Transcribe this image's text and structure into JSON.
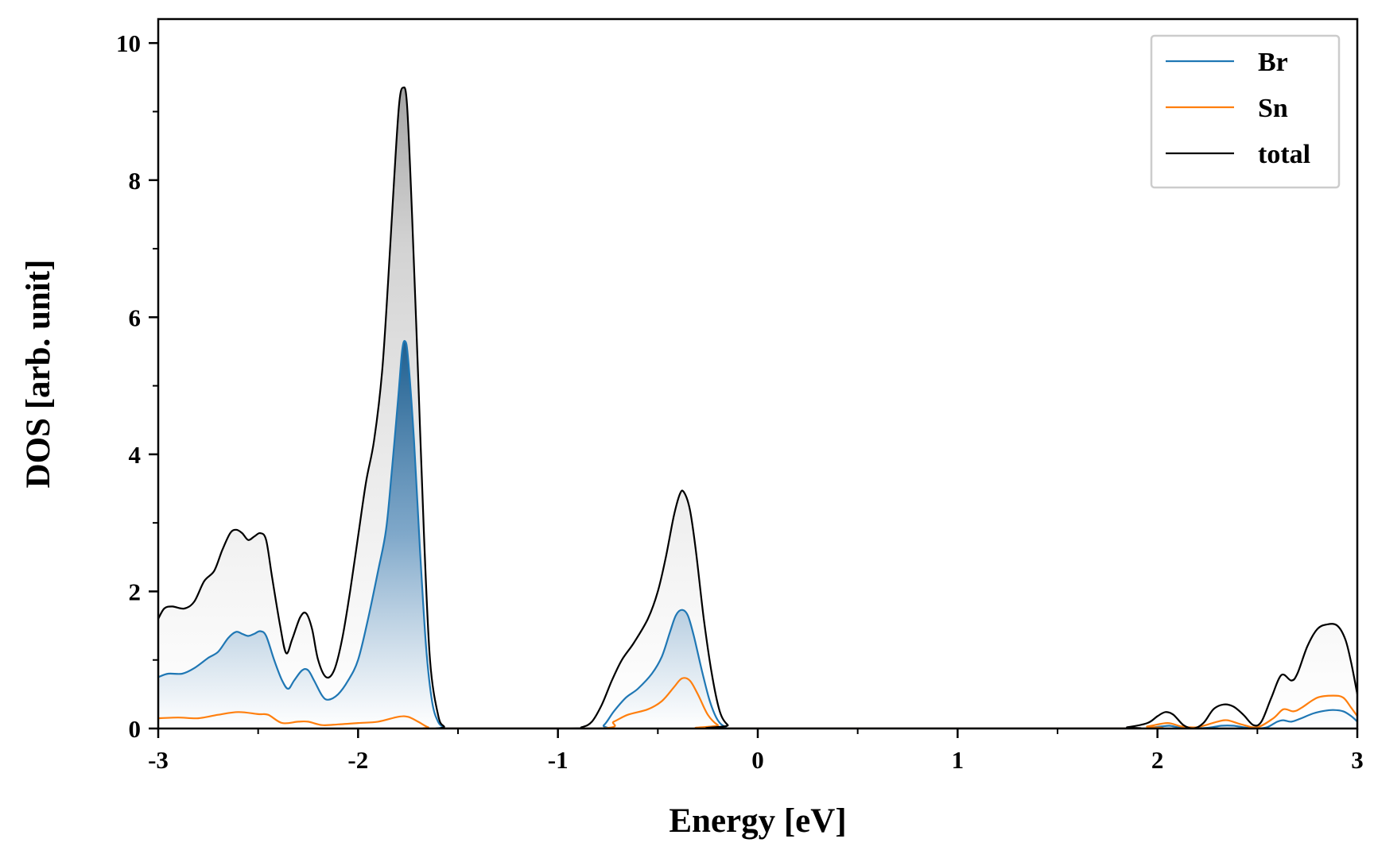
{
  "chart_data": {
    "type": "area",
    "title": "",
    "xlabel": "Energy [eV]",
    "ylabel": "DOS [arb. unit]",
    "xlim": [
      -3,
      3
    ],
    "ylim": [
      0,
      10.35
    ],
    "x_ticks": [
      -3,
      -2,
      -1,
      0,
      1,
      2,
      3
    ],
    "x_tick_labels": [
      "-3",
      "-2",
      "-1",
      "0",
      "1",
      "2",
      "3"
    ],
    "y_ticks": [
      0,
      2,
      4,
      6,
      8,
      10
    ],
    "y_tick_labels": [
      "0",
      "2",
      "4",
      "6",
      "8",
      "10"
    ],
    "grid": false,
    "legend_position": "top-right",
    "series": [
      {
        "name": "Br",
        "color": "#1f77b4",
        "fill": "gradient",
        "points": [
          [
            -3.0,
            0.75
          ],
          [
            -2.95,
            0.8
          ],
          [
            -2.88,
            0.8
          ],
          [
            -2.82,
            0.88
          ],
          [
            -2.75,
            1.03
          ],
          [
            -2.7,
            1.12
          ],
          [
            -2.65,
            1.32
          ],
          [
            -2.61,
            1.41
          ],
          [
            -2.58,
            1.38
          ],
          [
            -2.55,
            1.35
          ],
          [
            -2.52,
            1.38
          ],
          [
            -2.49,
            1.42
          ],
          [
            -2.46,
            1.35
          ],
          [
            -2.42,
            1.0
          ],
          [
            -2.38,
            0.7
          ],
          [
            -2.35,
            0.58
          ],
          [
            -2.32,
            0.7
          ],
          [
            -2.28,
            0.85
          ],
          [
            -2.25,
            0.85
          ],
          [
            -2.22,
            0.7
          ],
          [
            -2.18,
            0.48
          ],
          [
            -2.15,
            0.42
          ],
          [
            -2.1,
            0.5
          ],
          [
            -2.05,
            0.7
          ],
          [
            -2.0,
            1.0
          ],
          [
            -1.95,
            1.6
          ],
          [
            -1.9,
            2.3
          ],
          [
            -1.86,
            2.9
          ],
          [
            -1.83,
            3.8
          ],
          [
            -1.8,
            4.8
          ],
          [
            -1.78,
            5.5
          ],
          [
            -1.765,
            5.65
          ],
          [
            -1.75,
            5.4
          ],
          [
            -1.72,
            4.2
          ],
          [
            -1.69,
            2.6
          ],
          [
            -1.66,
            1.2
          ],
          [
            -1.63,
            0.4
          ],
          [
            -1.6,
            0.1
          ],
          [
            -1.57,
            0.02
          ],
          [
            -1.55,
            0.0
          ],
          [
            -0.82,
            0.0
          ],
          [
            -0.77,
            0.05
          ],
          [
            -0.72,
            0.25
          ],
          [
            -0.66,
            0.45
          ],
          [
            -0.6,
            0.58
          ],
          [
            -0.53,
            0.8
          ],
          [
            -0.48,
            1.05
          ],
          [
            -0.44,
            1.4
          ],
          [
            -0.41,
            1.65
          ],
          [
            -0.38,
            1.73
          ],
          [
            -0.35,
            1.65
          ],
          [
            -0.32,
            1.35
          ],
          [
            -0.28,
            0.85
          ],
          [
            -0.24,
            0.4
          ],
          [
            -0.2,
            0.12
          ],
          [
            -0.16,
            0.02
          ],
          [
            -0.12,
            0.0
          ],
          [
            1.85,
            0.0
          ],
          [
            1.95,
            0.01
          ],
          [
            2.02,
            0.03
          ],
          [
            2.06,
            0.04
          ],
          [
            2.1,
            0.02
          ],
          [
            2.15,
            0.0
          ],
          [
            2.25,
            0.01
          ],
          [
            2.32,
            0.04
          ],
          [
            2.38,
            0.04
          ],
          [
            2.45,
            0.01
          ],
          [
            2.5,
            0.0
          ],
          [
            2.55,
            0.02
          ],
          [
            2.6,
            0.1
          ],
          [
            2.63,
            0.12
          ],
          [
            2.67,
            0.1
          ],
          [
            2.72,
            0.15
          ],
          [
            2.78,
            0.22
          ],
          [
            2.84,
            0.26
          ],
          [
            2.88,
            0.27
          ],
          [
            2.93,
            0.25
          ],
          [
            2.97,
            0.18
          ],
          [
            3.0,
            0.1
          ]
        ]
      },
      {
        "name": "Sn",
        "color": "#ff7f0e",
        "fill": "none",
        "points": [
          [
            -3.0,
            0.15
          ],
          [
            -2.9,
            0.16
          ],
          [
            -2.8,
            0.15
          ],
          [
            -2.7,
            0.2
          ],
          [
            -2.6,
            0.24
          ],
          [
            -2.5,
            0.21
          ],
          [
            -2.45,
            0.2
          ],
          [
            -2.38,
            0.08
          ],
          [
            -2.3,
            0.1
          ],
          [
            -2.25,
            0.1
          ],
          [
            -2.18,
            0.05
          ],
          [
            -2.1,
            0.06
          ],
          [
            -2.0,
            0.08
          ],
          [
            -1.9,
            0.1
          ],
          [
            -1.8,
            0.17
          ],
          [
            -1.75,
            0.17
          ],
          [
            -1.7,
            0.1
          ],
          [
            -1.65,
            0.02
          ],
          [
            -1.6,
            0.0
          ],
          [
            -0.8,
            0.0
          ],
          [
            -0.72,
            0.1
          ],
          [
            -0.65,
            0.2
          ],
          [
            -0.55,
            0.28
          ],
          [
            -0.48,
            0.4
          ],
          [
            -0.42,
            0.6
          ],
          [
            -0.38,
            0.73
          ],
          [
            -0.34,
            0.7
          ],
          [
            -0.3,
            0.5
          ],
          [
            -0.25,
            0.2
          ],
          [
            -0.2,
            0.05
          ],
          [
            -0.15,
            0.0
          ],
          [
            1.85,
            0.0
          ],
          [
            1.95,
            0.03
          ],
          [
            2.05,
            0.08
          ],
          [
            2.12,
            0.03
          ],
          [
            2.2,
            0.02
          ],
          [
            2.3,
            0.1
          ],
          [
            2.35,
            0.12
          ],
          [
            2.42,
            0.06
          ],
          [
            2.5,
            0.02
          ],
          [
            2.58,
            0.15
          ],
          [
            2.63,
            0.28
          ],
          [
            2.68,
            0.25
          ],
          [
            2.72,
            0.3
          ],
          [
            2.8,
            0.45
          ],
          [
            2.88,
            0.48
          ],
          [
            2.93,
            0.45
          ],
          [
            2.97,
            0.3
          ],
          [
            3.0,
            0.18
          ]
        ]
      },
      {
        "name": "total",
        "color": "#000000",
        "fill": "gray-gradient",
        "points": [
          [
            -3.0,
            1.6
          ],
          [
            -2.97,
            1.75
          ],
          [
            -2.93,
            1.78
          ],
          [
            -2.87,
            1.75
          ],
          [
            -2.82,
            1.85
          ],
          [
            -2.77,
            2.15
          ],
          [
            -2.72,
            2.3
          ],
          [
            -2.68,
            2.6
          ],
          [
            -2.64,
            2.85
          ],
          [
            -2.61,
            2.9
          ],
          [
            -2.58,
            2.85
          ],
          [
            -2.55,
            2.75
          ],
          [
            -2.52,
            2.8
          ],
          [
            -2.49,
            2.85
          ],
          [
            -2.46,
            2.75
          ],
          [
            -2.43,
            2.2
          ],
          [
            -2.39,
            1.5
          ],
          [
            -2.36,
            1.1
          ],
          [
            -2.33,
            1.3
          ],
          [
            -2.29,
            1.62
          ],
          [
            -2.26,
            1.68
          ],
          [
            -2.23,
            1.45
          ],
          [
            -2.2,
            1.0
          ],
          [
            -2.16,
            0.75
          ],
          [
            -2.12,
            0.85
          ],
          [
            -2.08,
            1.3
          ],
          [
            -2.04,
            2.0
          ],
          [
            -2.0,
            2.8
          ],
          [
            -1.96,
            3.6
          ],
          [
            -1.92,
            4.2
          ],
          [
            -1.88,
            5.2
          ],
          [
            -1.85,
            6.5
          ],
          [
            -1.82,
            8.0
          ],
          [
            -1.795,
            9.1
          ],
          [
            -1.775,
            9.35
          ],
          [
            -1.755,
            9.1
          ],
          [
            -1.73,
            7.5
          ],
          [
            -1.7,
            5.2
          ],
          [
            -1.67,
            2.8
          ],
          [
            -1.64,
            1.0
          ],
          [
            -1.6,
            0.2
          ],
          [
            -1.57,
            0.03
          ],
          [
            -1.54,
            0.0
          ],
          [
            -0.95,
            0.0
          ],
          [
            -0.88,
            0.02
          ],
          [
            -0.83,
            0.1
          ],
          [
            -0.78,
            0.35
          ],
          [
            -0.73,
            0.7
          ],
          [
            -0.68,
            1.0
          ],
          [
            -0.62,
            1.25
          ],
          [
            -0.55,
            1.6
          ],
          [
            -0.5,
            2.0
          ],
          [
            -0.46,
            2.5
          ],
          [
            -0.42,
            3.1
          ],
          [
            -0.39,
            3.42
          ],
          [
            -0.37,
            3.45
          ],
          [
            -0.34,
            3.2
          ],
          [
            -0.31,
            2.6
          ],
          [
            -0.27,
            1.6
          ],
          [
            -0.23,
            0.8
          ],
          [
            -0.19,
            0.25
          ],
          [
            -0.15,
            0.05
          ],
          [
            -0.11,
            0.0
          ],
          [
            1.75,
            0.0
          ],
          [
            1.85,
            0.02
          ],
          [
            1.95,
            0.08
          ],
          [
            2.0,
            0.18
          ],
          [
            2.04,
            0.24
          ],
          [
            2.08,
            0.2
          ],
          [
            2.13,
            0.05
          ],
          [
            2.18,
            0.0
          ],
          [
            2.23,
            0.08
          ],
          [
            2.28,
            0.28
          ],
          [
            2.33,
            0.35
          ],
          [
            2.38,
            0.32
          ],
          [
            2.43,
            0.2
          ],
          [
            2.48,
            0.05
          ],
          [
            2.52,
            0.1
          ],
          [
            2.57,
            0.45
          ],
          [
            2.62,
            0.78
          ],
          [
            2.67,
            0.7
          ],
          [
            2.7,
            0.8
          ],
          [
            2.75,
            1.2
          ],
          [
            2.8,
            1.45
          ],
          [
            2.85,
            1.52
          ],
          [
            2.9,
            1.5
          ],
          [
            2.94,
            1.3
          ],
          [
            2.97,
            0.95
          ],
          [
            3.0,
            0.5
          ]
        ]
      }
    ]
  }
}
